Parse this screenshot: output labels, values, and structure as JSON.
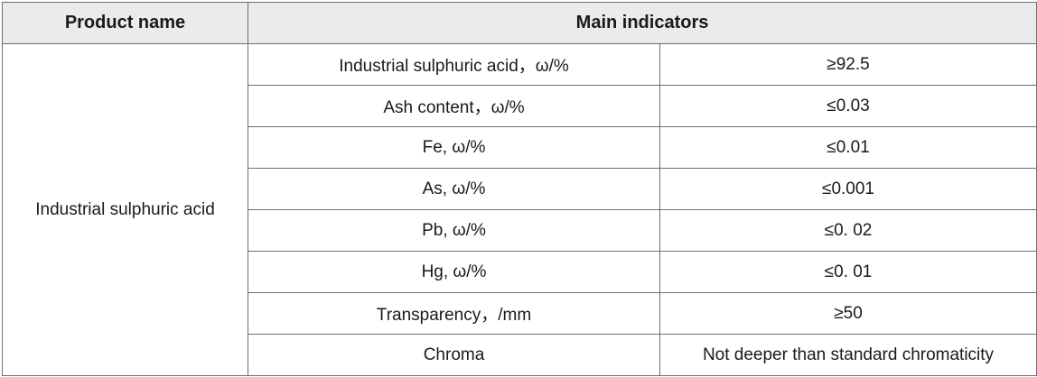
{
  "headers": {
    "product_name": "Product name",
    "main_indicators": "Main indicators"
  },
  "product": "Industrial sulphuric acid",
  "rows": [
    {
      "indicator": "Industrial sulphuric acid，ω/%",
      "value": "≥92.5"
    },
    {
      "indicator": "Ash content，ω/%",
      "value": "≤0.03"
    },
    {
      "indicator": "Fe, ω/%",
      "value": "≤0.01"
    },
    {
      "indicator": "As, ω/%",
      "value": "≤0.001"
    },
    {
      "indicator": "Pb, ω/%",
      "value": "≤0. 02"
    },
    {
      "indicator": "Hg, ω/%",
      "value": "≤0. 01"
    },
    {
      "indicator": "Transparency，/mm",
      "value": "≥50"
    },
    {
      "indicator": "Chroma",
      "value": "Not deeper than standard chromaticity"
    }
  ]
}
